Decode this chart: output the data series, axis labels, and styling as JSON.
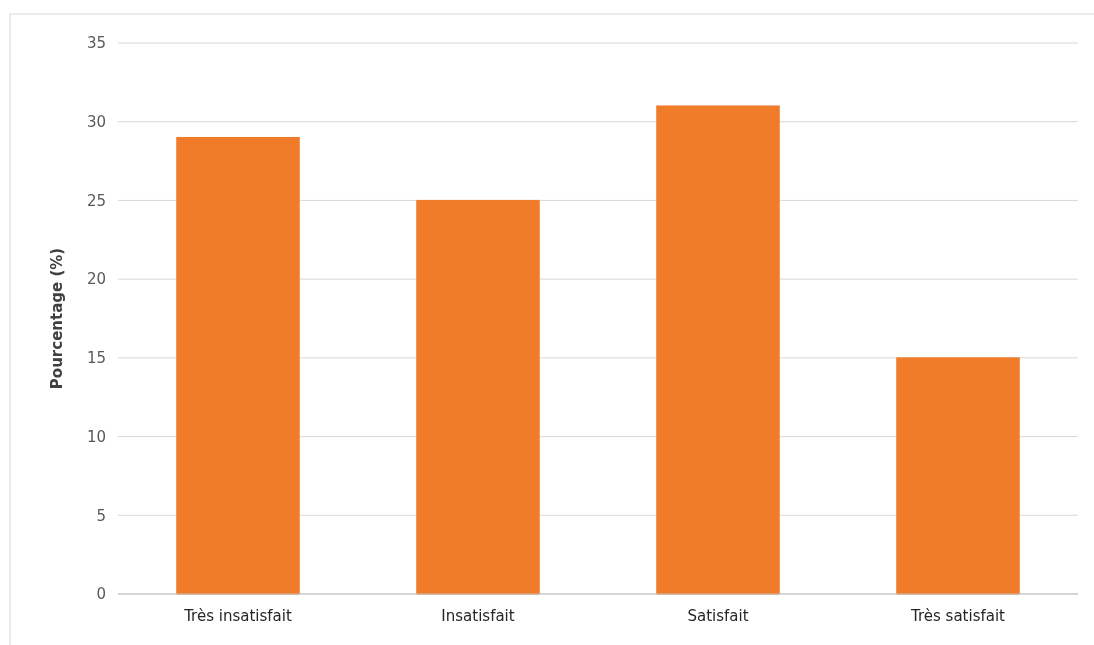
{
  "chart_data": {
    "type": "bar",
    "ylabel": "Pourcentage (%)",
    "categories": [
      "Très insatisfait",
      "Insatisfait",
      "Satisfait",
      "Très satisfait"
    ],
    "values": [
      29,
      25,
      31,
      15
    ],
    "color": "#f07b28",
    "ylim": [
      0,
      35
    ],
    "yticks": [
      0,
      5,
      10,
      15,
      20,
      25,
      30,
      35
    ],
    "grid": "y"
  }
}
